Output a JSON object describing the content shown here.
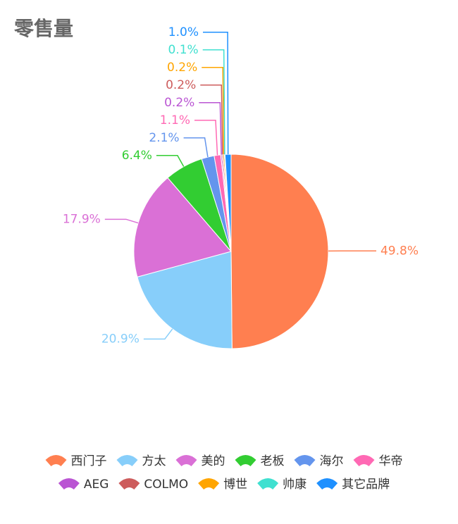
{
  "chart_data": {
    "type": "pie",
    "title": "零售量",
    "categories": [
      "西门子",
      "方太",
      "美的",
      "老板",
      "海尔",
      "华帝",
      "AEG",
      "COLMO",
      "博世",
      "帅康",
      "其它品牌"
    ],
    "values": [
      49.8,
      20.9,
      17.9,
      6.4,
      2.1,
      1.1,
      0.2,
      0.2,
      0.2,
      0.1,
      1.0
    ],
    "value_labels": [
      "49.8%",
      "20.9%",
      "17.9%",
      "6.4%",
      "2.1%",
      "1.1%",
      "0.2%",
      "0.2%",
      "0.2%",
      "0.1%",
      "1.0%"
    ],
    "colors": [
      "#ff7f50",
      "#87cefa",
      "#da70d6",
      "#32cd32",
      "#6495ed",
      "#ff69b4",
      "#ba55d3",
      "#cd5c5c",
      "#ffa500",
      "#40e0d0",
      "#1e90ff"
    ]
  }
}
